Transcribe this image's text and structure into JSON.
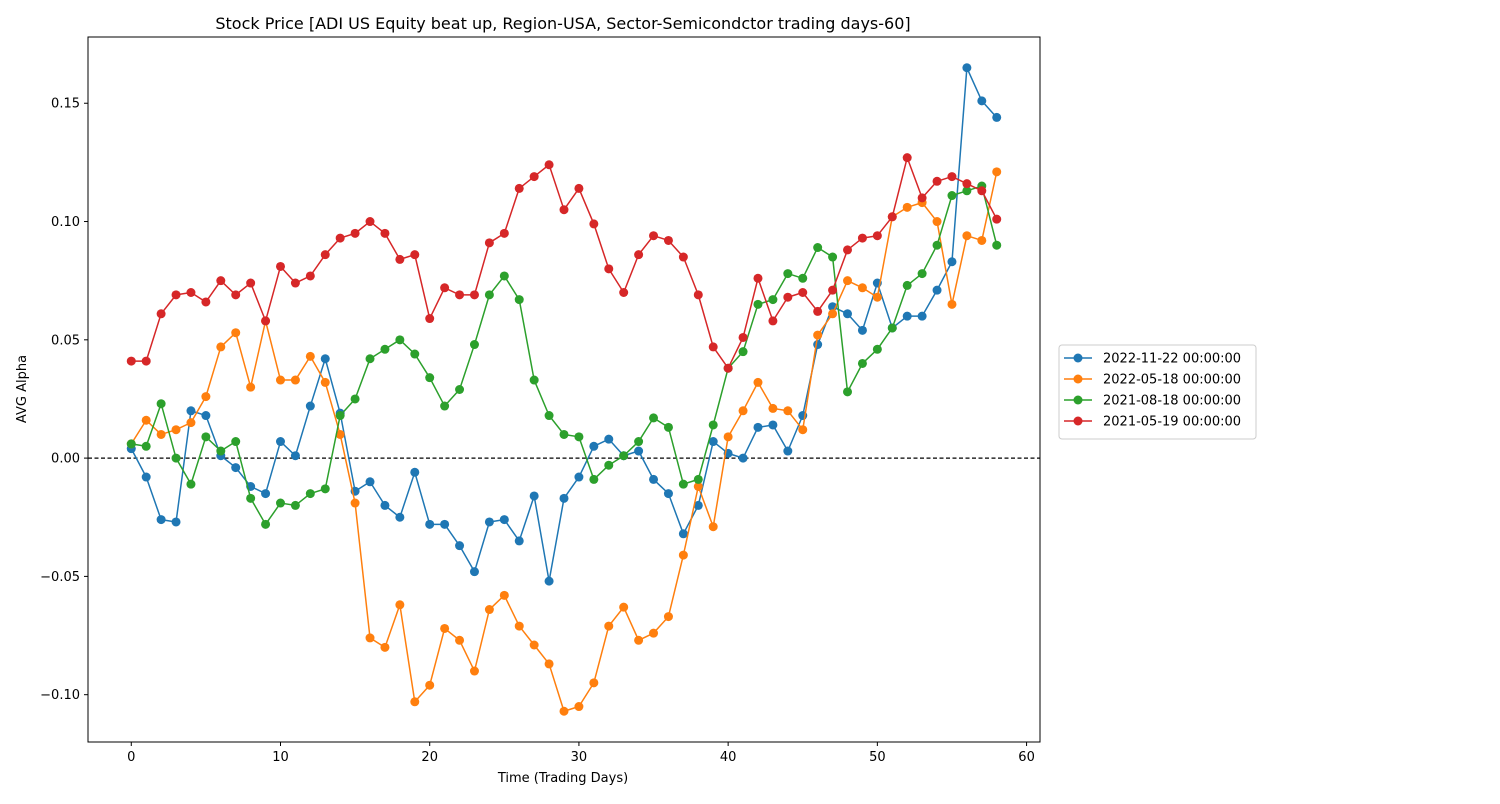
{
  "chart_data": {
    "type": "line",
    "title": "Stock Price [ADI US Equity beat up, Region-USA, Sector-Semicondctor trading days-60]",
    "xlabel": "Time (Trading Days)",
    "ylabel": "AVG Alpha",
    "xlim": [
      -2.9,
      60.9
    ],
    "ylim": [
      -0.12,
      0.178
    ],
    "xticks": [
      0,
      10,
      20,
      30,
      40,
      50,
      60
    ],
    "xtick_labels": [
      "0",
      "10",
      "20",
      "30",
      "40",
      "50",
      "60"
    ],
    "yticks": [
      -0.1,
      -0.05,
      0.0,
      0.05,
      0.1,
      0.15
    ],
    "ytick_labels": [
      "−0.10",
      "−0.05",
      "0.00",
      "0.05",
      "0.10",
      "0.15"
    ],
    "reference_line": {
      "y": 0,
      "style": "dashed",
      "color": "#000000"
    },
    "grid": false,
    "legend_position": "right-outside",
    "series": [
      {
        "name": "2022-11-22 00:00:00",
        "color": "#1f77b4",
        "values": [
          0.004,
          -0.008,
          -0.026,
          -0.027,
          0.02,
          0.018,
          0.001,
          -0.004,
          -0.012,
          -0.015,
          0.007,
          0.001,
          0.022,
          0.042,
          0.019,
          -0.014,
          -0.01,
          -0.02,
          -0.025,
          -0.006,
          -0.028,
          -0.028,
          -0.037,
          -0.048,
          -0.027,
          -0.026,
          -0.035,
          -0.016,
          -0.052,
          -0.017,
          -0.008,
          0.005,
          0.008,
          0.001,
          0.003,
          -0.009,
          -0.015,
          -0.032,
          -0.02,
          0.007,
          0.002,
          0.0,
          0.013,
          0.014,
          0.003,
          0.018,
          0.048,
          0.064,
          0.061,
          0.054,
          0.074,
          0.055,
          0.06,
          0.06,
          0.071,
          0.083,
          0.165,
          0.151,
          0.144
        ]
      },
      {
        "name": "2022-05-18 00:00:00",
        "color": "#ff7f0e",
        "values": [
          0.006,
          0.016,
          0.01,
          0.012,
          0.015,
          0.026,
          0.047,
          0.053,
          0.03,
          0.058,
          0.033,
          0.033,
          0.043,
          0.032,
          0.01,
          -0.019,
          -0.076,
          -0.08,
          -0.062,
          -0.103,
          -0.096,
          -0.072,
          -0.077,
          -0.09,
          -0.064,
          -0.058,
          -0.071,
          -0.079,
          -0.087,
          -0.107,
          -0.105,
          -0.095,
          -0.071,
          -0.063,
          -0.077,
          -0.074,
          -0.067,
          -0.041,
          -0.012,
          -0.029,
          0.009,
          0.02,
          0.032,
          0.021,
          0.02,
          0.012,
          0.052,
          0.061,
          0.075,
          0.072,
          0.068,
          0.102,
          0.106,
          0.108,
          0.1,
          0.065,
          0.094,
          0.092,
          0.121
        ]
      },
      {
        "name": "2021-08-18 00:00:00",
        "color": "#2ca02c",
        "values": [
          0.006,
          0.005,
          0.023,
          0.0,
          -0.011,
          0.009,
          0.003,
          0.007,
          -0.017,
          -0.028,
          -0.019,
          -0.02,
          -0.015,
          -0.013,
          0.018,
          0.025,
          0.042,
          0.046,
          0.05,
          0.044,
          0.034,
          0.022,
          0.029,
          0.048,
          0.069,
          0.077,
          0.067,
          0.033,
          0.018,
          0.01,
          0.009,
          -0.009,
          -0.003,
          0.001,
          0.007,
          0.017,
          0.013,
          -0.011,
          -0.009,
          0.014,
          0.038,
          0.045,
          0.065,
          0.067,
          0.078,
          0.076,
          0.089,
          0.085,
          0.028,
          0.04,
          0.046,
          0.055,
          0.073,
          0.078,
          0.09,
          0.111,
          0.113,
          0.115,
          0.09
        ]
      },
      {
        "name": "2021-05-19 00:00:00",
        "color": "#d62728",
        "values": [
          0.041,
          0.041,
          0.061,
          0.069,
          0.07,
          0.066,
          0.075,
          0.069,
          0.074,
          0.058,
          0.081,
          0.074,
          0.077,
          0.086,
          0.093,
          0.095,
          0.1,
          0.095,
          0.084,
          0.086,
          0.059,
          0.072,
          0.069,
          0.069,
          0.091,
          0.095,
          0.114,
          0.119,
          0.124,
          0.105,
          0.114,
          0.099,
          0.08,
          0.07,
          0.086,
          0.094,
          0.092,
          0.085,
          0.069,
          0.047,
          0.038,
          0.051,
          0.076,
          0.058,
          0.068,
          0.07,
          0.062,
          0.071,
          0.088,
          0.093,
          0.094,
          0.102,
          0.127,
          0.11,
          0.117,
          0.119,
          0.116,
          0.113,
          0.101
        ]
      }
    ]
  }
}
